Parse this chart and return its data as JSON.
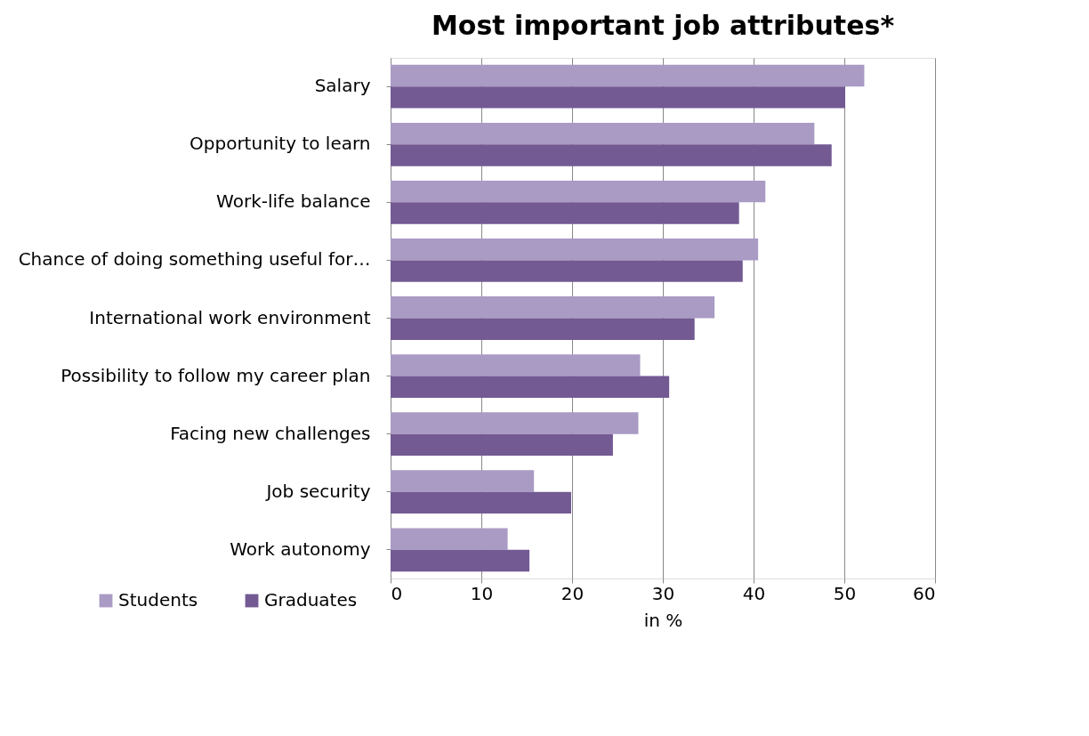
{
  "chart_data": {
    "type": "bar",
    "orientation": "horizontal",
    "title": "Most important job attributes*",
    "xlabel": "in %",
    "categories": [
      "Salary",
      "Opportunity to learn",
      "Work-life balance",
      "Chance of doing something useful for…",
      "International work environment",
      "Possibility to follow my career plan",
      "Facing new challenges",
      "Job security",
      "Work autonomy"
    ],
    "series": [
      {
        "name": "Students",
        "color": "#a99bc4",
        "values": [
          52.2,
          46.7,
          41.3,
          40.5,
          35.7,
          27.5,
          27.3,
          15.8,
          12.9
        ]
      },
      {
        "name": "Graduates",
        "color": "#735a93",
        "values": [
          50.1,
          48.6,
          38.4,
          38.8,
          33.5,
          30.7,
          24.5,
          19.9,
          15.3
        ]
      }
    ],
    "xlim": [
      0,
      60
    ],
    "xticks": [
      0,
      10,
      20,
      30,
      40,
      50,
      60
    ],
    "grid": "x",
    "legend": "bottom left"
  }
}
